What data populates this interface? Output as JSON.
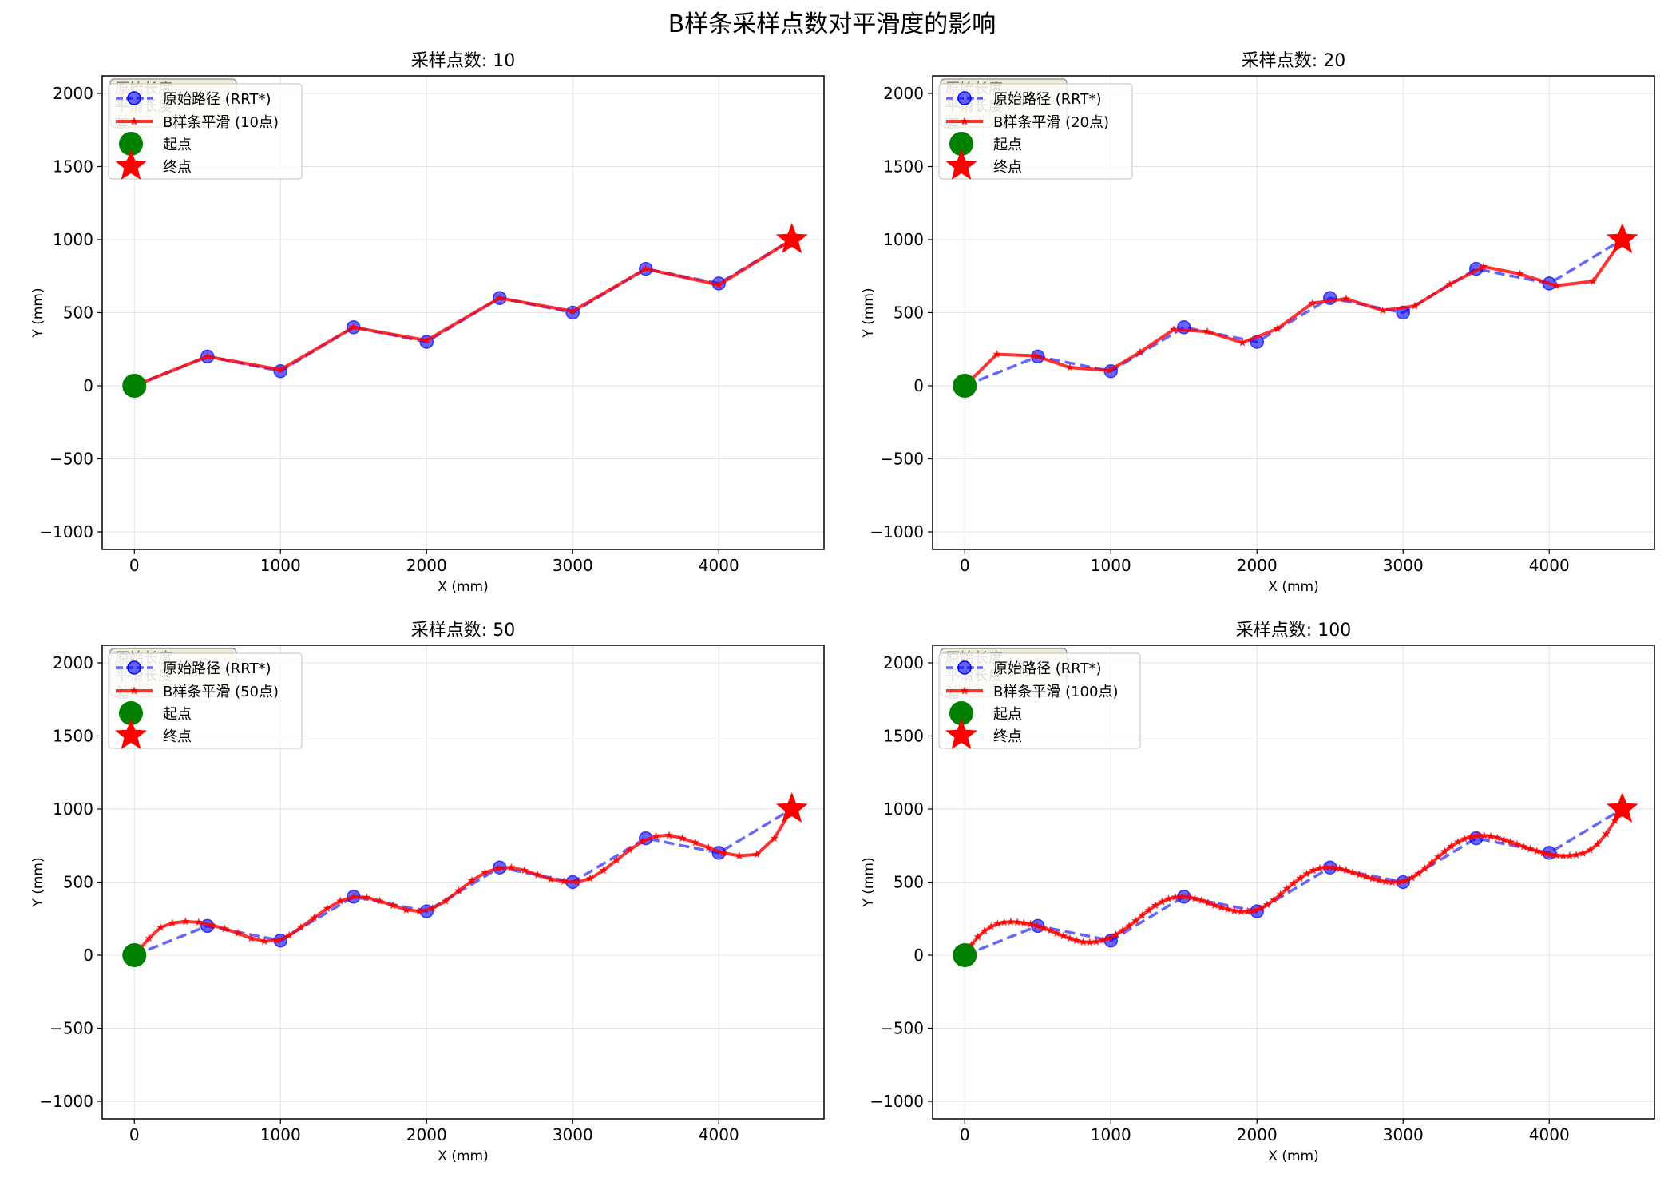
{
  "figure": {
    "title": "B样条采样点数对平滑度的影响"
  },
  "colors": {
    "original": "#0000ff",
    "smooth": "#ff0000",
    "start": "#008000",
    "end": "#ff0000",
    "grid": "#e3e3e3",
    "info_box": "#f3ecd6"
  },
  "legend": {
    "original": "原始路径 (RRT*)",
    "smooth_prefix": "B样条平滑 (",
    "smooth_suffix": "点)",
    "start": "起点",
    "end": "终点",
    "placement": "upper-left"
  },
  "info_box_lines": [
    "原始长度",
    "平滑长度",
    "差"
  ],
  "chart_data": [
    {
      "type": "line",
      "title": "采样点数: 10",
      "samples": 10,
      "xlabel": "X (mm)",
      "ylabel": "Y (mm)",
      "xlim": [
        -220,
        4720
      ],
      "ylim": [
        -1120,
        2120
      ],
      "xticks": [
        0,
        1000,
        2000,
        3000,
        4000
      ],
      "yticks": [
        -1000,
        -500,
        0,
        500,
        1000,
        1500,
        2000
      ],
      "grid": true,
      "series": [
        {
          "name": "原始路径 (RRT*)",
          "x": [
            0,
            500,
            1000,
            1500,
            2000,
            2500,
            3000,
            3500,
            4000,
            4500
          ],
          "y": [
            0,
            200,
            100,
            400,
            300,
            600,
            500,
            800,
            700,
            1000
          ]
        },
        {
          "name": "B样条平滑 (10点)",
          "x": [
            0,
            500,
            1000,
            1500,
            2000,
            2500,
            3000,
            3500,
            4000,
            4500
          ],
          "y": [
            0,
            200,
            110,
            400,
            310,
            600,
            510,
            800,
            690,
            1000
          ]
        }
      ],
      "start": [
        0,
        0
      ],
      "end": [
        4500,
        1000
      ]
    },
    {
      "type": "line",
      "title": "采样点数: 20",
      "samples": 20,
      "xlabel": "X (mm)",
      "ylabel": "Y (mm)",
      "xlim": [
        -220,
        4720
      ],
      "ylim": [
        -1120,
        2120
      ],
      "xticks": [
        0,
        1000,
        2000,
        3000,
        4000
      ],
      "yticks": [
        -1000,
        -500,
        0,
        500,
        1000,
        1500,
        2000
      ],
      "grid": true,
      "series": [
        {
          "name": "原始路径 (RRT*)",
          "x": [
            0,
            500,
            1000,
            1500,
            2000,
            2500,
            3000,
            3500,
            4000,
            4500
          ],
          "y": [
            0,
            200,
            100,
            400,
            300,
            600,
            500,
            800,
            700,
            1000
          ]
        },
        {
          "name": "B样条平滑 (20点)",
          "x": [
            0,
            220,
            480,
            720,
            990,
            1200,
            1430,
            1660,
            1900,
            2140,
            2380,
            2610,
            2860,
            3080,
            3320,
            3550,
            3800,
            4050,
            4300,
            4500
          ],
          "y": [
            0,
            215,
            205,
            125,
            105,
            230,
            385,
            370,
            295,
            390,
            565,
            595,
            515,
            545,
            695,
            815,
            765,
            685,
            715,
            1000
          ]
        }
      ],
      "start": [
        0,
        0
      ],
      "end": [
        4500,
        1000
      ]
    },
    {
      "type": "line",
      "title": "采样点数: 50",
      "samples": 50,
      "xlabel": "X (mm)",
      "ylabel": "Y (mm)",
      "xlim": [
        -220,
        4720
      ],
      "ylim": [
        -1120,
        2120
      ],
      "xticks": [
        0,
        1000,
        2000,
        3000,
        4000
      ],
      "yticks": [
        -1000,
        -500,
        0,
        500,
        1000,
        1500,
        2000
      ],
      "grid": true,
      "series": [
        {
          "name": "原始路径 (RRT*)",
          "x": [
            0,
            500,
            1000,
            1500,
            2000,
            2500,
            3000,
            3500,
            4000,
            4500
          ],
          "y": [
            0,
            200,
            100,
            400,
            300,
            600,
            500,
            800,
            700,
            1000
          ]
        },
        {
          "name": "B样条平滑 (50点)",
          "x": [
            0,
            100,
            180,
            260,
            350,
            440,
            530,
            620,
            710,
            800,
            890,
            980,
            1060,
            1140,
            1230,
            1320,
            1410,
            1500,
            1590,
            1680,
            1770,
            1860,
            1950,
            2040,
            2130,
            2220,
            2310,
            2400,
            2490,
            2580,
            2670,
            2760,
            2850,
            2940,
            3030,
            3120,
            3210,
            3300,
            3390,
            3480,
            3570,
            3660,
            3750,
            3840,
            3930,
            4030,
            4140,
            4260,
            4380,
            4500
          ],
          "y": [
            0,
            115,
            190,
            220,
            230,
            225,
            205,
            180,
            150,
            115,
            95,
            100,
            135,
            190,
            255,
            320,
            370,
            400,
            395,
            370,
            340,
            310,
            300,
            320,
            370,
            440,
            510,
            565,
            595,
            600,
            580,
            550,
            520,
            505,
            500,
            525,
            580,
            650,
            720,
            780,
            815,
            820,
            800,
            770,
            735,
            700,
            680,
            690,
            800,
            1000
          ]
        }
      ],
      "start": [
        0,
        0
      ],
      "end": [
        4500,
        1000
      ]
    },
    {
      "type": "line",
      "title": "采样点数: 100",
      "samples": 100,
      "xlabel": "X (mm)",
      "ylabel": "Y (mm)",
      "xlim": [
        -220,
        4720
      ],
      "ylim": [
        -1120,
        2120
      ],
      "xticks": [
        0,
        1000,
        2000,
        3000,
        4000
      ],
      "yticks": [
        -1000,
        -500,
        0,
        500,
        1000,
        1500,
        2000
      ],
      "grid": true,
      "series": [
        {
          "name": "原始路径 (RRT*)",
          "x": [
            0,
            500,
            1000,
            1500,
            2000,
            2500,
            3000,
            3500,
            4000,
            4500
          ],
          "y": [
            0,
            200,
            100,
            400,
            300,
            600,
            500,
            800,
            700,
            1000
          ]
        },
        {
          "name": "B样条平滑 (100点)",
          "x": [
            0,
            45,
            90,
            135,
            180,
            225,
            270,
            315,
            360,
            405,
            450,
            495,
            540,
            585,
            630,
            675,
            720,
            765,
            810,
            855,
            900,
            945,
            990,
            1035,
            1080,
            1125,
            1170,
            1215,
            1260,
            1305,
            1350,
            1395,
            1440,
            1485,
            1530,
            1575,
            1620,
            1665,
            1710,
            1755,
            1800,
            1845,
            1890,
            1935,
            1980,
            2025,
            2070,
            2115,
            2160,
            2205,
            2250,
            2295,
            2340,
            2385,
            2430,
            2475,
            2520,
            2565,
            2610,
            2655,
            2700,
            2745,
            2790,
            2835,
            2880,
            2925,
            2970,
            3015,
            3060,
            3105,
            3150,
            3195,
            3240,
            3285,
            3330,
            3375,
            3420,
            3465,
            3510,
            3555,
            3600,
            3645,
            3690,
            3735,
            3780,
            3825,
            3870,
            3915,
            3960,
            4005,
            4050,
            4095,
            4140,
            4185,
            4230,
            4280,
            4330,
            4390,
            4450,
            4500
          ],
          "y": [
            0,
            70,
            125,
            165,
            195,
            215,
            225,
            228,
            226,
            220,
            212,
            200,
            185,
            168,
            150,
            132,
            115,
            100,
            90,
            88,
            92,
            102,
            118,
            140,
            168,
            200,
            235,
            272,
            308,
            340,
            365,
            385,
            397,
            402,
            398,
            388,
            374,
            358,
            342,
            327,
            314,
            304,
            298,
            298,
            305,
            320,
            345,
            378,
            415,
            455,
            493,
            527,
            557,
            580,
            595,
            602,
            600,
            592,
            580,
            566,
            551,
            537,
            524,
            512,
            503,
            498,
            500,
            510,
            530,
            558,
            593,
            632,
            672,
            710,
            745,
            774,
            796,
            810,
            818,
            818,
            813,
            803,
            790,
            775,
            759,
            743,
            727,
            712,
            699,
            689,
            683,
            680,
            681,
            686,
            697,
            720,
            760,
            830,
            920,
            1000
          ]
        }
      ],
      "start": [
        0,
        0
      ],
      "end": [
        4500,
        1000
      ]
    }
  ]
}
